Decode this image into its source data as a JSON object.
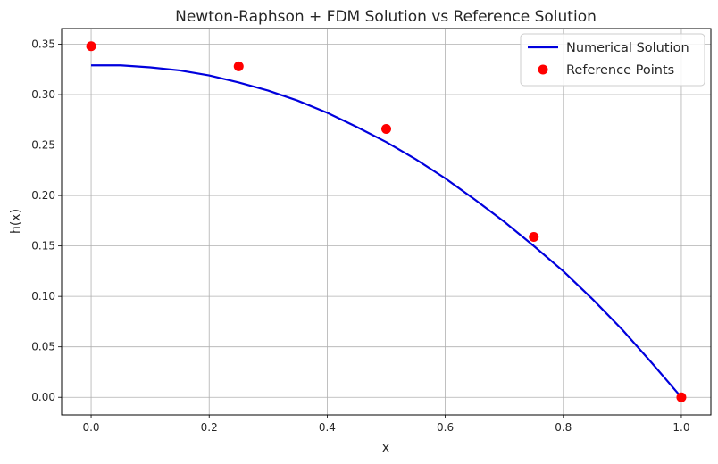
{
  "chart_data": {
    "type": "line",
    "title": "Newton-Raphson + FDM Solution vs Reference Solution",
    "xlabel": "x",
    "ylabel": "h(x)",
    "xlim": [
      -0.05,
      1.05
    ],
    "ylim": [
      -0.0175,
      0.3655
    ],
    "xticks": [
      0.0,
      0.2,
      0.4,
      0.6,
      0.8,
      1.0
    ],
    "xtick_labels": [
      "0.0",
      "0.2",
      "0.4",
      "0.6",
      "0.8",
      "1.0"
    ],
    "yticks": [
      0.0,
      0.05,
      0.1,
      0.15,
      0.2,
      0.25,
      0.3,
      0.35
    ],
    "ytick_labels": [
      "0.00",
      "0.05",
      "0.10",
      "0.15",
      "0.20",
      "0.25",
      "0.30",
      "0.35"
    ],
    "grid": true,
    "legend_position": "top-right",
    "series": [
      {
        "name": "Numerical Solution",
        "kind": "line",
        "color": "#0000dd",
        "x": [
          0.0,
          0.05,
          0.1,
          0.15,
          0.2,
          0.25,
          0.3,
          0.35,
          0.4,
          0.45,
          0.5,
          0.55,
          0.6,
          0.65,
          0.7,
          0.75,
          0.8,
          0.85,
          0.9,
          0.95,
          1.0
        ],
        "y": [
          0.329,
          0.329,
          0.327,
          0.324,
          0.319,
          0.312,
          0.304,
          0.294,
          0.282,
          0.268,
          0.253,
          0.236,
          0.217,
          0.196,
          0.174,
          0.15,
          0.125,
          0.097,
          0.067,
          0.034,
          0.0
        ]
      },
      {
        "name": "Reference Points",
        "kind": "scatter",
        "color": "#ff0000",
        "x": [
          0.0,
          0.25,
          0.5,
          0.75,
          1.0
        ],
        "y": [
          0.348,
          0.328,
          0.266,
          0.159,
          0.0
        ]
      }
    ]
  }
}
